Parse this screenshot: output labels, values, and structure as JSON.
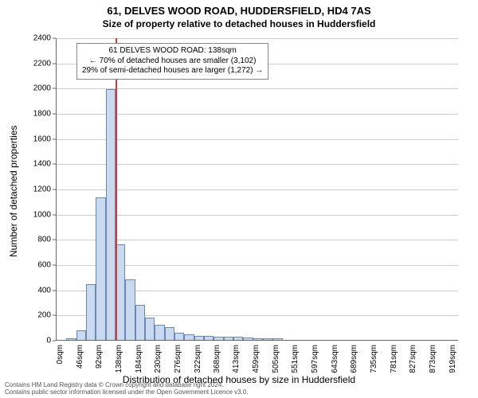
{
  "titles": {
    "main": "61, DELVES WOOD ROAD, HUDDERSFIELD, HD4 7AS",
    "sub": "Size of property relative to detached houses in Huddersfield"
  },
  "chart": {
    "type": "histogram",
    "xlabel": "Distribution of detached houses by size in Huddersfield",
    "ylabel": "Number of detached properties",
    "ylim": [
      0,
      2400
    ],
    "yticks": [
      0,
      200,
      400,
      600,
      800,
      1000,
      1200,
      1400,
      1600,
      1800,
      2000,
      2200,
      2400
    ],
    "xticks": [
      "0sqm",
      "46sqm",
      "92sqm",
      "138sqm",
      "184sqm",
      "230sqm",
      "276sqm",
      "322sqm",
      "368sqm",
      "413sqm",
      "459sqm",
      "505sqm",
      "551sqm",
      "597sqm",
      "643sqm",
      "689sqm",
      "735sqm",
      "781sqm",
      "827sqm",
      "873sqm",
      "919sqm"
    ],
    "xtick_positions": [
      0,
      46,
      92,
      138,
      184,
      230,
      276,
      322,
      368,
      413,
      459,
      505,
      551,
      597,
      643,
      689,
      735,
      781,
      827,
      873,
      919
    ],
    "x_max": 942,
    "grid_color": "#cccccc",
    "bar_fill": "#c9d9ef",
    "bar_stroke": "#6b86b3",
    "highlight_color": "#d43a2f",
    "highlight_x": 138,
    "bin_width": 23,
    "bins_x": [
      23,
      46,
      69,
      92,
      115,
      138,
      161,
      184,
      207,
      230,
      253,
      276,
      299,
      322,
      345,
      368,
      391,
      414,
      437,
      460,
      483,
      506
    ],
    "bin_values": [
      10,
      75,
      440,
      1130,
      1990,
      760,
      480,
      280,
      175,
      120,
      100,
      55,
      45,
      30,
      30,
      25,
      25,
      25,
      20,
      15,
      15,
      10
    ]
  },
  "annotation": {
    "line1": "61 DELVES WOOD ROAD: 138sqm",
    "line2": "← 70% of detached houses are smaller (3,102)",
    "line3": "29% of semi-detached houses are larger (1,272) →"
  },
  "footer": {
    "line1": "Contains HM Land Registry data © Crown copyright and database right 2024.",
    "line2": "Contains public sector information licensed under the Open Government Licence v3.0."
  }
}
